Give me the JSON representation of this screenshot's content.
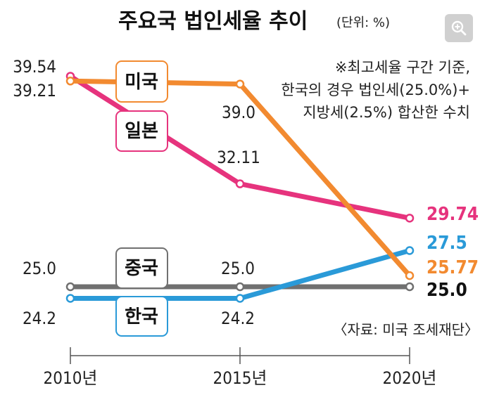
{
  "chart_data": {
    "type": "line",
    "title": "주요국 법인세율 추이",
    "unit": "(단위: %)",
    "categories": [
      "2010년",
      "2015년",
      "2020년"
    ],
    "ylim": [
      23,
      41
    ],
    "grid": false,
    "series": [
      {
        "name": "미국",
        "color": "#f28a30",
        "values": [
          39.21,
          39.0,
          25.77
        ],
        "labels": [
          "39.21",
          "39.0",
          "25.77"
        ]
      },
      {
        "name": "일본",
        "color": "#e6337d",
        "values": [
          39.54,
          32.11,
          29.74
        ],
        "labels": [
          "39.54",
          "32.11",
          "29.74"
        ]
      },
      {
        "name": "중국",
        "color": "#707070",
        "values": [
          25.0,
          25.0,
          25.0
        ],
        "labels": [
          "25.0",
          "25.0",
          "25.0"
        ]
      },
      {
        "name": "한국",
        "color": "#2a9ad8",
        "values": [
          24.2,
          24.2,
          27.5
        ],
        "labels": [
          "24.2",
          "24.2",
          "27.5"
        ]
      }
    ],
    "note": [
      "※최고세율 구간 기준,",
      "한국의 경우 법인세(25.0%)+",
      "지방세(2.5%) 합산한 수치"
    ],
    "source": "〈자료: 미국 조세재단〉"
  }
}
